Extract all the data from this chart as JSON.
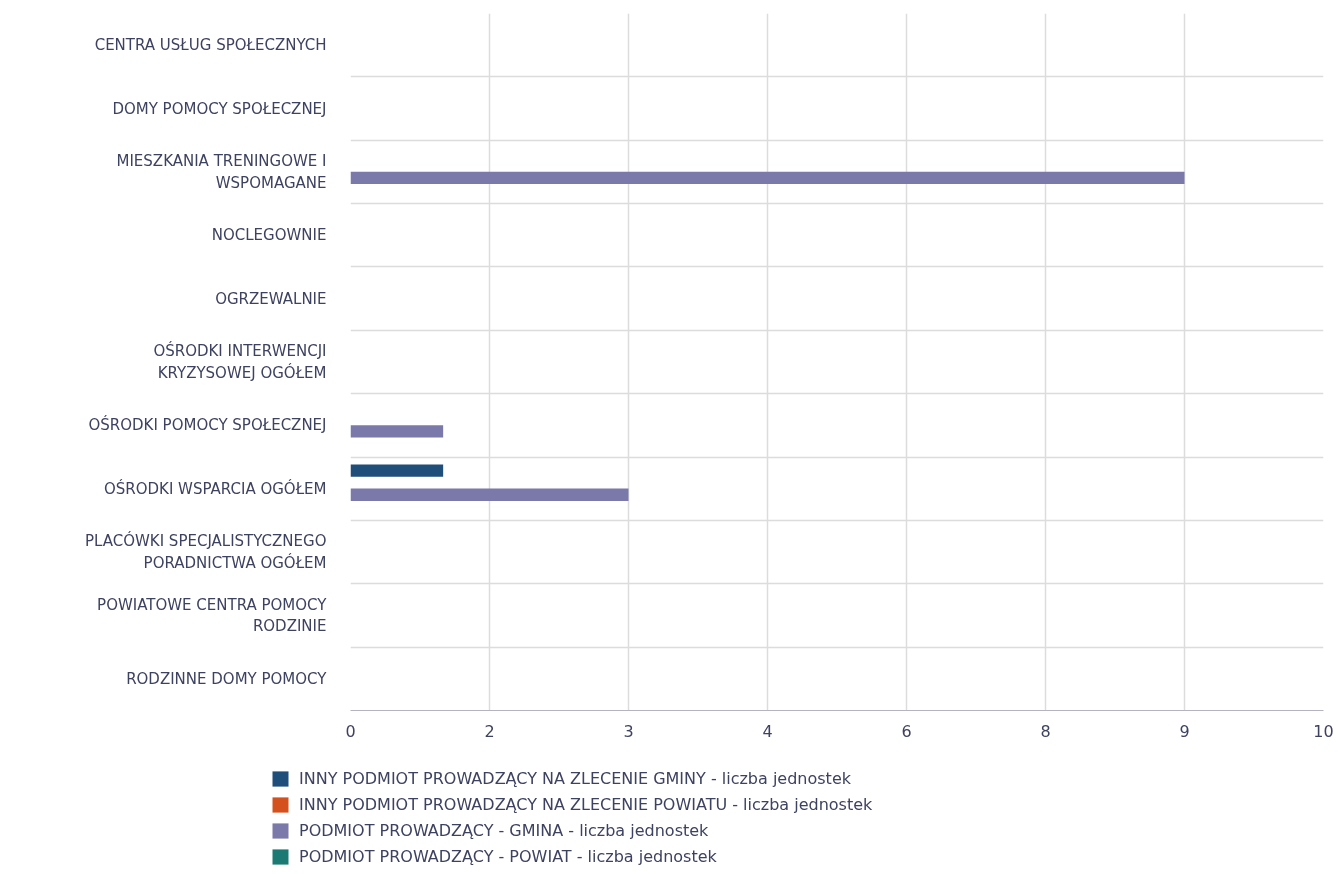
{
  "chart_data": {
    "type": "bar",
    "orientation": "horizontal",
    "categories": [
      "CENTRA USŁUG SPOŁECZNYCH",
      "DOMY POMOCY SPOŁECZNEJ",
      "MIESZKANIA TRENINGOWE I WSPOMAGANE",
      "NOCLEGOWNIE",
      "OGRZEWALNIE",
      "OŚRODKI INTERWENCJI KRYZYSOWEJ OGÓŁEM",
      "OŚRODKI POMOCY SPOŁECZNEJ",
      "OŚRODKI WSPARCIA OGÓŁEM",
      "PLACÓWKI SPECJALISTYCZNEGO PORADNICTWA OGÓŁEM",
      "POWIATOWE CENTRA POMOCY RODZINIE",
      "RODZINNE DOMY POMOCY"
    ],
    "series": [
      {
        "name": "INNY PODMIOT PROWADZĄCY NA ZLECENIE GMINY - liczba jednostek",
        "color": "#1f4e7a",
        "values": [
          null,
          null,
          null,
          null,
          null,
          null,
          null,
          1,
          null,
          null,
          null
        ]
      },
      {
        "name": "INNY PODMIOT PROWADZĄCY NA ZLECENIE POWIATU - liczba jednostek",
        "color": "#d4501c",
        "values": [
          null,
          null,
          null,
          null,
          null,
          null,
          null,
          null,
          null,
          null,
          null
        ]
      },
      {
        "name": "PODMIOT PROWADZĄCY - GMINA - liczba jednostek",
        "color": "#7b79aa",
        "values": [
          null,
          null,
          9,
          null,
          null,
          null,
          1,
          3,
          null,
          null,
          null
        ]
      },
      {
        "name": "PODMIOT PROWADZĄCY - POWIAT - liczba jednostek",
        "color": "#1b7a74",
        "values": [
          null,
          null,
          null,
          null,
          null,
          null,
          null,
          null,
          null,
          null,
          null
        ]
      }
    ],
    "xlim": [
      0,
      10.5
    ],
    "xticks": [
      0,
      {
        "value": 1.5,
        "label": "2"
      },
      3,
      {
        "value": 4.5,
        "label": "4"
      },
      6,
      {
        "value": 7.5,
        "label": "8"
      },
      9,
      {
        "value": 10.5,
        "label": "10"
      }
    ],
    "grid": true,
    "legend": "bottom"
  }
}
